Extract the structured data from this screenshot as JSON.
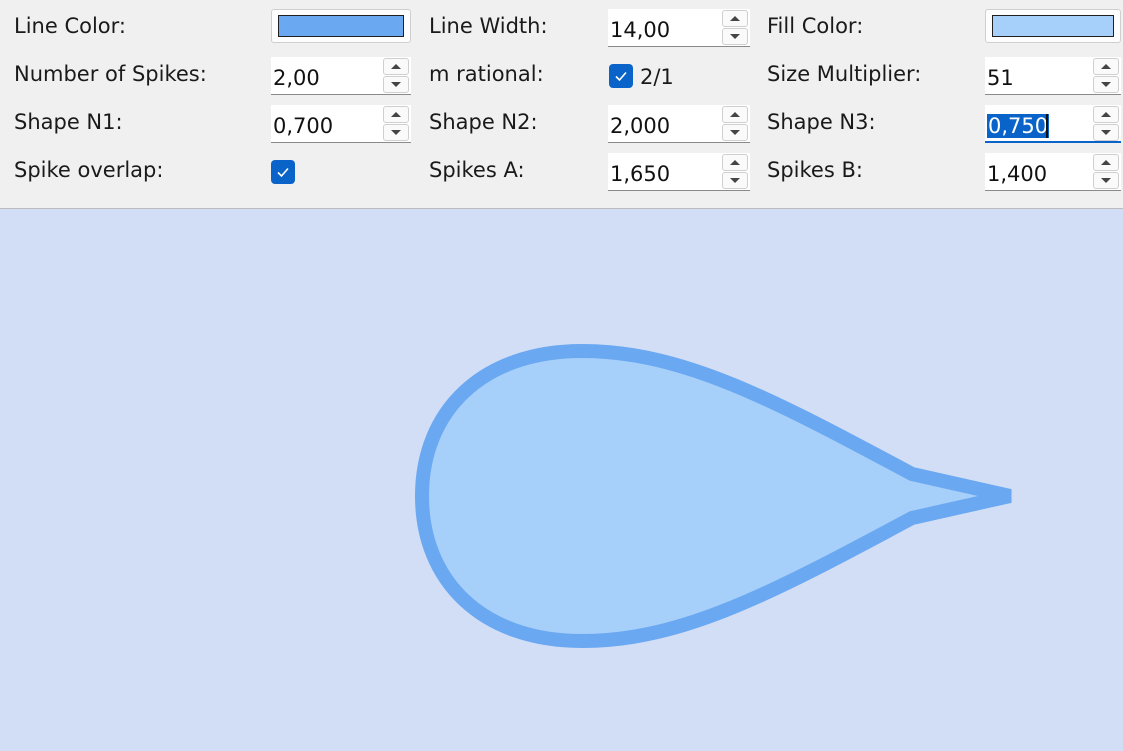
{
  "controls": {
    "line_color": {
      "label": "Line Color:",
      "color": "#6aa8f1"
    },
    "line_width": {
      "label": "Line Width:",
      "value": "14,00"
    },
    "fill_color": {
      "label": "Fill Color:",
      "color": "#a6cff9"
    },
    "num_spikes": {
      "label": "Number of Spikes:",
      "value": "2,00"
    },
    "m_rational": {
      "label": "m rational:",
      "checked": true,
      "text": "2/1"
    },
    "size_mult": {
      "label": "Size Multiplier:",
      "value": "51"
    },
    "shape_n1": {
      "label": "Shape N1:",
      "value": "0,700"
    },
    "shape_n2": {
      "label": "Shape N2:",
      "value": "2,000"
    },
    "shape_n3": {
      "label": "Shape N3:",
      "value": "0,750"
    },
    "spike_overlap": {
      "label": "Spike overlap:",
      "checked": true
    },
    "spikes_a": {
      "label": "Spikes A:",
      "value": "1,650"
    },
    "spikes_b": {
      "label": "Spikes B:",
      "value": "1,400"
    }
  },
  "canvas": {
    "background": "#d2def5",
    "stroke_color": "#6aa8f1",
    "fill_color": "#a6cff9"
  },
  "icons": {
    "check": "check-icon",
    "spin_up": "chevron-up-icon",
    "spin_down": "chevron-down-icon"
  }
}
